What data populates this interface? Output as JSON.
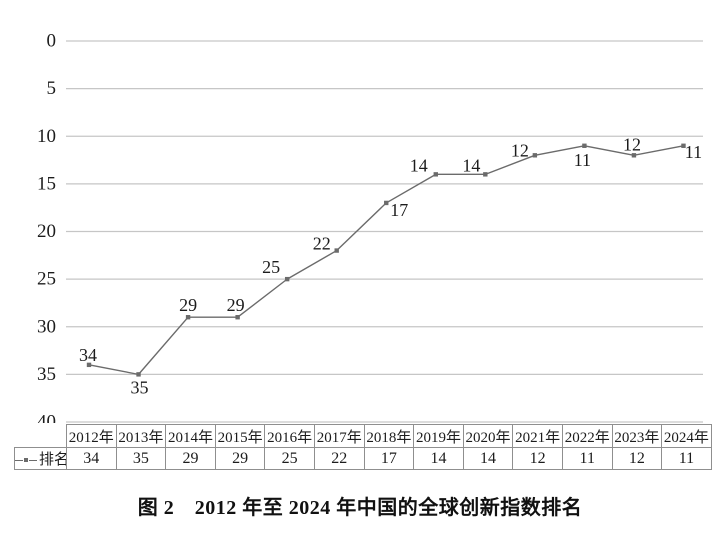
{
  "figure": {
    "caption": "图 2　2012 年至 2024 年中国的全球创新指数排名"
  },
  "chart_data": {
    "type": "line",
    "title": "",
    "xlabel": "",
    "ylabel": "",
    "categories": [
      "2012年",
      "2013年",
      "2014年",
      "2015年",
      "2016年",
      "2017年",
      "2018年",
      "2019年",
      "2020年",
      "2021年",
      "2022年",
      "2023年",
      "2024年"
    ],
    "series": [
      {
        "name": "排名",
        "values": [
          34,
          35,
          29,
          29,
          25,
          22,
          17,
          14,
          14,
          12,
          11,
          12,
          11
        ]
      }
    ],
    "y_ticks": [
      0,
      5,
      10,
      15,
      20,
      25,
      30,
      35,
      40
    ],
    "ylim": [
      0,
      40
    ],
    "y_axis_inverted": true,
    "grid": "horizontal",
    "data_labels": true,
    "legend_position": "bottom-table-row",
    "colors": {
      "line": "#6b6b6b",
      "marker": "#6b6b6b",
      "grid": "#c6c6c6",
      "text": "#1c1c1c",
      "table_border": "#8f8f8f"
    }
  }
}
